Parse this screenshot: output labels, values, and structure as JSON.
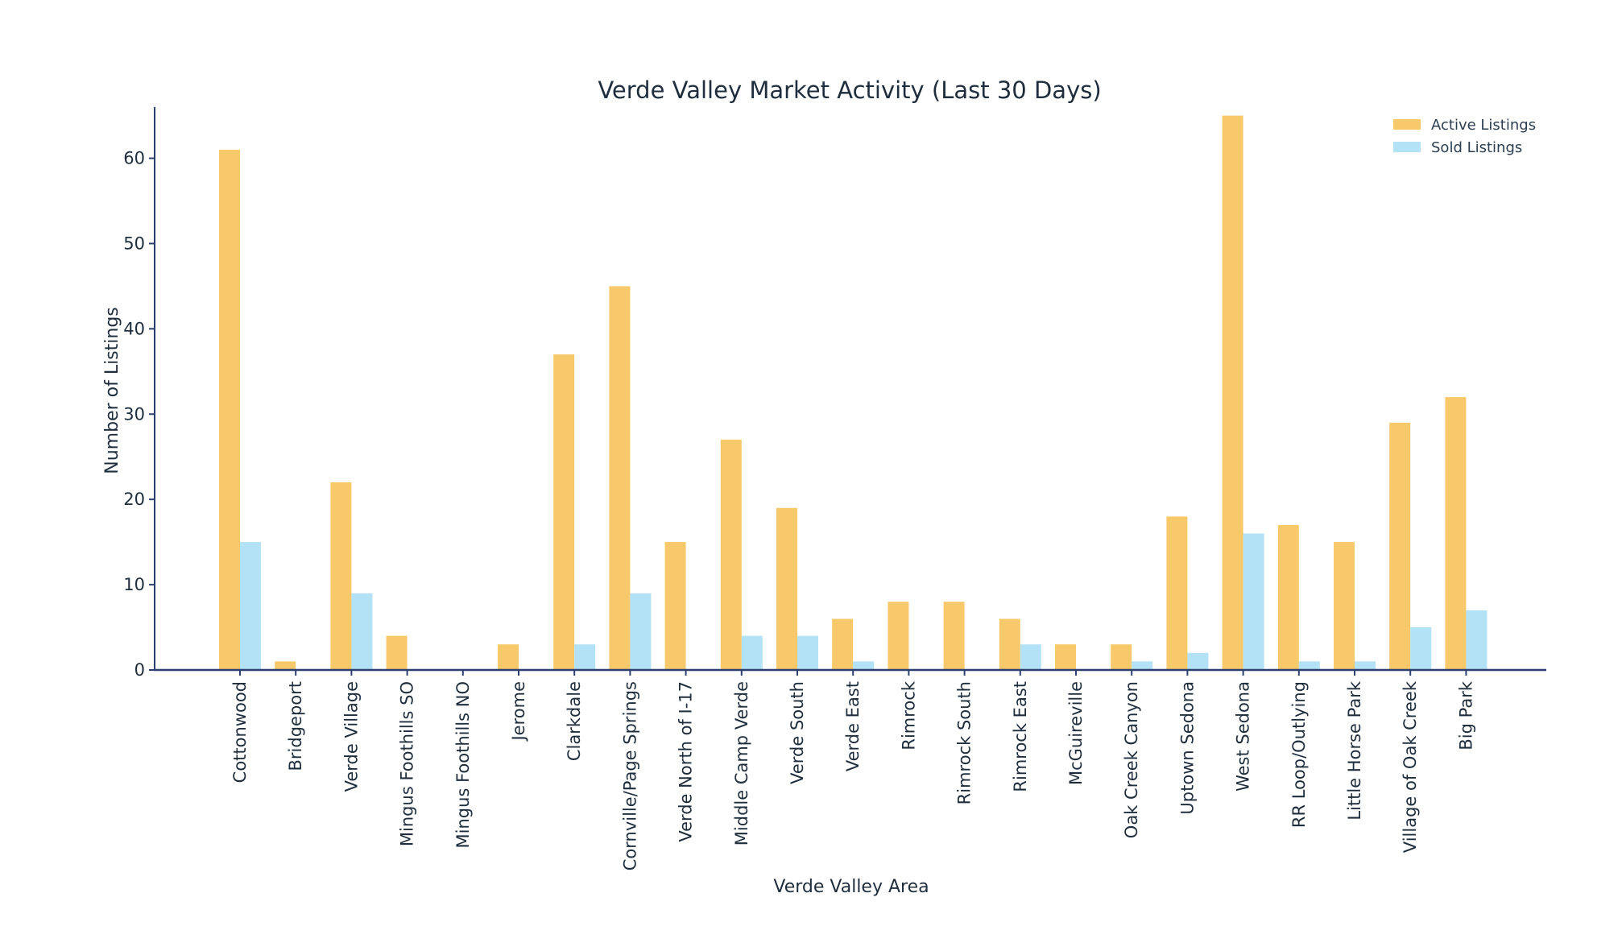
{
  "chart_data": {
    "type": "bar",
    "title": "Verde Valley Market Activity (Last 30 Days)",
    "xlabel": "Verde Valley Area",
    "ylabel": "Number of Listings",
    "ylim": [
      0,
      66
    ],
    "yticks": [
      0,
      10,
      20,
      30,
      40,
      50,
      60
    ],
    "grid": false,
    "legend_position": "top-right",
    "categories": [
      "Cottonwood",
      "Bridgeport",
      "Verde Village",
      "Mingus Foothills SO",
      "Mingus Foothills NO",
      "Jerome",
      "Clarkdale",
      "Cornville/Page Springs",
      "Verde North of I-17",
      "Middle Camp Verde",
      "Verde South",
      "Verde East",
      "Rimrock",
      "Rimrock South",
      "Rimrock East",
      "McGuireville",
      "Oak Creek Canyon",
      "Uptown Sedona",
      "West Sedona",
      "RR Loop/Outlying",
      "Little Horse Park",
      "Village of Oak Creek",
      "Big Park"
    ],
    "series": [
      {
        "name": "Active Listings",
        "color": "#f7c96b",
        "values": [
          61,
          1,
          22,
          4,
          0,
          3,
          37,
          45,
          15,
          27,
          19,
          6,
          8,
          8,
          6,
          3,
          3,
          18,
          65,
          17,
          15,
          29,
          32
        ]
      },
      {
        "name": "Sold Listings",
        "color": "#b3e1f5",
        "values": [
          15,
          0,
          9,
          0,
          0,
          0,
          3,
          9,
          0,
          4,
          4,
          1,
          0,
          0,
          3,
          0,
          1,
          2,
          16,
          1,
          1,
          5,
          7
        ]
      }
    ]
  }
}
